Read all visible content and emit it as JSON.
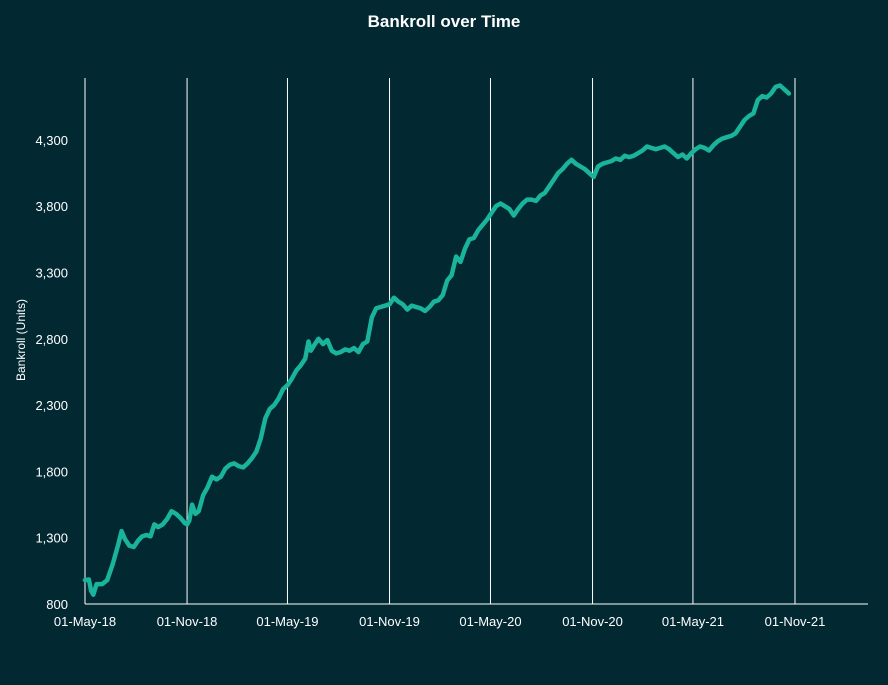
{
  "chart_data": {
    "type": "line",
    "title": "Bankroll over Time",
    "ylabel": "Bankroll (Units)",
    "xlabel": "",
    "y_ticks": [
      800,
      1300,
      1800,
      2300,
      2800,
      3300,
      3800,
      4300
    ],
    "y_tick_labels": [
      "800",
      "1,300",
      "1,800",
      "2,300",
      "2,800",
      "3,300",
      "3,800",
      "4,300"
    ],
    "ylim": [
      800,
      4800
    ],
    "x_ticks": [
      "2018-05-01",
      "2018-11-01",
      "2019-05-01",
      "2019-11-01",
      "2020-05-01",
      "2020-11-01",
      "2021-05-01",
      "2021-11-01"
    ],
    "x_tick_labels": [
      "01-May-18",
      "01-Nov-18",
      "01-May-19",
      "01-Nov-19",
      "01-May-20",
      "01-Nov-20",
      "01-May-21",
      "01-Nov-21"
    ],
    "xlim": [
      "2018-05-01",
      "2022-01-15"
    ],
    "grid": "vertical",
    "line_color": "#1ab39b",
    "background_color": "#022831",
    "series": [
      {
        "x": [
          "2018-05-01",
          "2018-05-08",
          "2018-05-12",
          "2018-05-16",
          "2018-05-22",
          "2018-06-01",
          "2018-06-10",
          "2018-06-20",
          "2018-06-30",
          "2018-07-06",
          "2018-07-12",
          "2018-07-20",
          "2018-07-28",
          "2018-08-05",
          "2018-08-12",
          "2018-08-20",
          "2018-08-27",
          "2018-09-03",
          "2018-09-10",
          "2018-09-18",
          "2018-09-26",
          "2018-10-04",
          "2018-10-12",
          "2018-10-20",
          "2018-10-28",
          "2018-11-01",
          "2018-11-05",
          "2018-11-10",
          "2018-11-16",
          "2018-11-22",
          "2018-11-30",
          "2018-12-08",
          "2018-12-16",
          "2018-12-24",
          "2019-01-01",
          "2019-01-09",
          "2019-01-17",
          "2019-01-25",
          "2019-02-02",
          "2019-02-10",
          "2019-02-18",
          "2019-02-26",
          "2019-03-06",
          "2019-03-14",
          "2019-03-22",
          "2019-03-30",
          "2019-04-07",
          "2019-04-15",
          "2019-04-23",
          "2019-05-01",
          "2019-05-09",
          "2019-05-17",
          "2019-05-25",
          "2019-06-02",
          "2019-06-08",
          "2019-06-12",
          "2019-06-18",
          "2019-06-26",
          "2019-07-04",
          "2019-07-12",
          "2019-07-20",
          "2019-07-28",
          "2019-08-05",
          "2019-08-13",
          "2019-08-21",
          "2019-08-29",
          "2019-09-06",
          "2019-09-14",
          "2019-09-22",
          "2019-09-30",
          "2019-10-08",
          "2019-10-16",
          "2019-10-24",
          "2019-11-01",
          "2019-11-09",
          "2019-11-17",
          "2019-11-25",
          "2019-12-03",
          "2019-12-11",
          "2019-12-19",
          "2019-12-27",
          "2020-01-04",
          "2020-01-12",
          "2020-01-20",
          "2020-01-28",
          "2020-02-05",
          "2020-02-13",
          "2020-02-21",
          "2020-02-29",
          "2020-03-08",
          "2020-03-16",
          "2020-03-24",
          "2020-04-01",
          "2020-04-09",
          "2020-04-17",
          "2020-04-25",
          "2020-05-03",
          "2020-05-11",
          "2020-05-19",
          "2020-05-27",
          "2020-06-04",
          "2020-06-12",
          "2020-06-20",
          "2020-06-28",
          "2020-07-06",
          "2020-07-14",
          "2020-07-22",
          "2020-07-30",
          "2020-08-07",
          "2020-08-15",
          "2020-08-23",
          "2020-08-31",
          "2020-09-08",
          "2020-09-16",
          "2020-09-24",
          "2020-10-02",
          "2020-10-10",
          "2020-10-18",
          "2020-10-26",
          "2020-11-03",
          "2020-11-11",
          "2020-11-19",
          "2020-11-27",
          "2020-12-05",
          "2020-12-13",
          "2020-12-21",
          "2020-12-29",
          "2021-01-06",
          "2021-01-14",
          "2021-01-22",
          "2021-01-30",
          "2021-02-07",
          "2021-02-15",
          "2021-02-23",
          "2021-03-03",
          "2021-03-11",
          "2021-03-19",
          "2021-03-27",
          "2021-04-04",
          "2021-04-12",
          "2021-04-20",
          "2021-04-28",
          "2021-05-06",
          "2021-05-14",
          "2021-05-22",
          "2021-05-30",
          "2021-06-07",
          "2021-06-15",
          "2021-06-23",
          "2021-07-01",
          "2021-07-09",
          "2021-07-17",
          "2021-07-25",
          "2021-08-02",
          "2021-08-10",
          "2021-08-18",
          "2021-08-26",
          "2021-09-03",
          "2021-09-11",
          "2021-09-19",
          "2021-09-27",
          "2021-10-05",
          "2021-10-13",
          "2021-10-21"
        ],
        "values": [
          980,
          985,
          900,
          870,
          950,
          950,
          980,
          1100,
          1250,
          1350,
          1290,
          1240,
          1230,
          1280,
          1310,
          1320,
          1310,
          1400,
          1380,
          1400,
          1440,
          1500,
          1480,
          1450,
          1410,
          1400,
          1430,
          1550,
          1480,
          1500,
          1620,
          1680,
          1760,
          1740,
          1760,
          1820,
          1850,
          1860,
          1840,
          1830,
          1860,
          1900,
          1950,
          2050,
          2200,
          2270,
          2300,
          2350,
          2420,
          2450,
          2500,
          2560,
          2600,
          2650,
          2780,
          2710,
          2750,
          2800,
          2760,
          2790,
          2710,
          2690,
          2700,
          2720,
          2710,
          2730,
          2700,
          2760,
          2780,
          2960,
          3030,
          3040,
          3050,
          3060,
          3110,
          3080,
          3060,
          3020,
          3050,
          3040,
          3030,
          3010,
          3040,
          3080,
          3090,
          3130,
          3240,
          3280,
          3420,
          3380,
          3480,
          3550,
          3560,
          3620,
          3660,
          3700,
          3750,
          3800,
          3820,
          3800,
          3780,
          3730,
          3780,
          3820,
          3850,
          3850,
          3840,
          3880,
          3900,
          3950,
          4000,
          4050,
          4080,
          4120,
          4150,
          4120,
          4100,
          4080,
          4050,
          4020,
          4100,
          4120,
          4130,
          4140,
          4160,
          4150,
          4180,
          4170,
          4180,
          4200,
          4220,
          4250,
          4240,
          4230,
          4240,
          4250,
          4230,
          4200,
          4170,
          4190,
          4160,
          4200,
          4230,
          4250,
          4240,
          4220,
          4260,
          4290,
          4310,
          4320,
          4330,
          4350,
          4400,
          4450,
          4480,
          4500,
          4600,
          4630,
          4620,
          4650,
          4700,
          4710,
          4680,
          4650
        ]
      }
    ]
  }
}
